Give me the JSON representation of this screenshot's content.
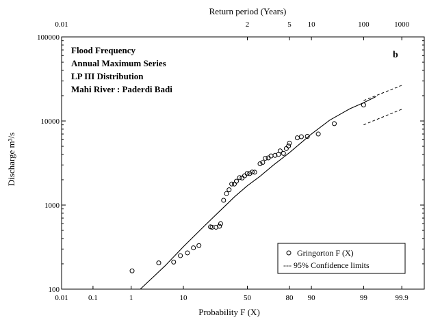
{
  "chart_data": {
    "type": "scatter",
    "panel_tag": "b",
    "info_lines": [
      "Flood Frequency",
      "Annual Maximum Series",
      "LP III Distribution",
      "Mahi River : Paderdi Badi"
    ],
    "xlabel": "Probability F (X)",
    "x2label": "Return period (Years)",
    "ylabel": "Discharge m³/s",
    "y_scale": "log",
    "ylim": [
      100,
      100000
    ],
    "x_scale": "normal-probability",
    "xlim": [
      0.01,
      99.98
    ],
    "x_ticks": [
      {
        "value": 0.01,
        "label": "0.01"
      },
      {
        "value": 0.1,
        "label": "0.1"
      },
      {
        "value": 1,
        "label": "1"
      },
      {
        "value": 10,
        "label": "10"
      },
      {
        "value": 50,
        "label": "50"
      },
      {
        "value": 80,
        "label": "80"
      },
      {
        "value": 90,
        "label": "90"
      },
      {
        "value": 99,
        "label": "99"
      },
      {
        "value": 99.9,
        "label": "99.9"
      }
    ],
    "x2_ticks": [
      {
        "value": 0.01,
        "label": "0.01"
      },
      {
        "value": 50,
        "label": "2"
      },
      {
        "value": 80,
        "label": "5"
      },
      {
        "value": 90,
        "label": "10"
      },
      {
        "value": 99,
        "label": "100"
      },
      {
        "value": 99.9,
        "label": "1000"
      }
    ],
    "y_ticks": [
      {
        "value": 100,
        "label": "100"
      },
      {
        "value": 1000,
        "label": "1000"
      },
      {
        "value": 10000,
        "label": "10000"
      },
      {
        "value": 100000,
        "label": "100000"
      }
    ],
    "grid": false,
    "legend_position": "bottom-right",
    "series": [
      {
        "name": "Gringorton F (X)",
        "kind": "scatter",
        "marker": "open-circle",
        "x": [
          1.05,
          3.8,
          7.0,
          9.0,
          11.5,
          14.0,
          16.6,
          23.0,
          24.0,
          26.5,
          28.8,
          29.6,
          31.7,
          33.8,
          35.7,
          37.7,
          39.7,
          41.3,
          43.8,
          45.8,
          47.8,
          49.8,
          51.8,
          53.8,
          55.8,
          60.0,
          62.0,
          64.0,
          66.2,
          68.2,
          71.0,
          73.3,
          74.4,
          76.5,
          78.2,
          79.5,
          80.0,
          84.1,
          86.0,
          88.5,
          92.2,
          95.9,
          99.0
        ],
        "y": [
          165,
          205,
          210,
          250,
          270,
          310,
          330,
          550,
          545,
          545,
          560,
          600,
          1140,
          1370,
          1520,
          1780,
          1780,
          1920,
          2120,
          2100,
          2230,
          2370,
          2370,
          2470,
          2460,
          3100,
          3210,
          3600,
          3640,
          3840,
          3900,
          4000,
          4410,
          4120,
          4700,
          5050,
          5450,
          6300,
          6500,
          6560,
          7000,
          9300,
          15500
        ]
      },
      {
        "name": "LP III fit",
        "kind": "line",
        "x": [
          1.6,
          3,
          5,
          10,
          20,
          30,
          40,
          50,
          60,
          70,
          80,
          90,
          95,
          98,
          99,
          99.5
        ],
        "y": [
          100,
          140,
          190,
          320,
          580,
          880,
          1260,
          1700,
          2200,
          3000,
          4200,
          7000,
          10200,
          14000,
          16500,
          19500
        ]
      },
      {
        "name": "95% Confidence limits",
        "kind": "dashed",
        "segments": [
          {
            "x": [
              99,
              99.9
            ],
            "y": [
              17500,
              26500
            ]
          },
          {
            "x": [
              99,
              99.9
            ],
            "y": [
              9000,
              13800
            ]
          }
        ]
      }
    ],
    "legend": [
      {
        "label": "Gringorton F (X)",
        "symbol": "open-circle"
      },
      {
        "label": "--- 95% Confidence limits",
        "symbol": "none"
      }
    ]
  }
}
